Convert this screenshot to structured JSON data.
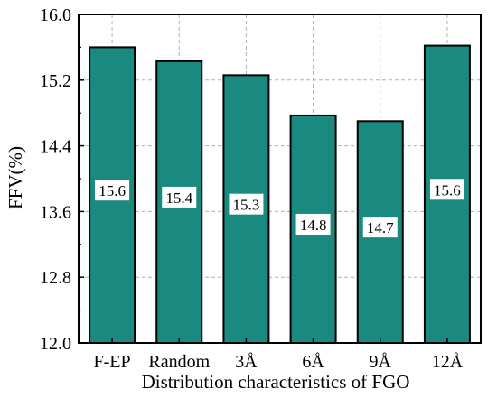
{
  "chart_data": {
    "type": "bar",
    "categories": [
      "F-EP",
      "Random",
      "3Å",
      "6Å",
      "9Å",
      "12Å"
    ],
    "values": [
      15.6,
      15.43,
      15.26,
      14.77,
      14.7,
      15.62
    ],
    "data_labels": [
      "15.6",
      "15.4",
      "15.3",
      "14.8",
      "14.7",
      "15.6"
    ],
    "title": "",
    "xlabel": "Distribution characteristics of FGO",
    "ylabel": "FFV(%)",
    "ylim": [
      12.0,
      16.0
    ],
    "yticks": [
      "12.0",
      "12.8",
      "13.6",
      "14.4",
      "15.2",
      "16.0"
    ],
    "grid": true,
    "bar_color": "#1a8a80",
    "edge_color": "#000000"
  }
}
